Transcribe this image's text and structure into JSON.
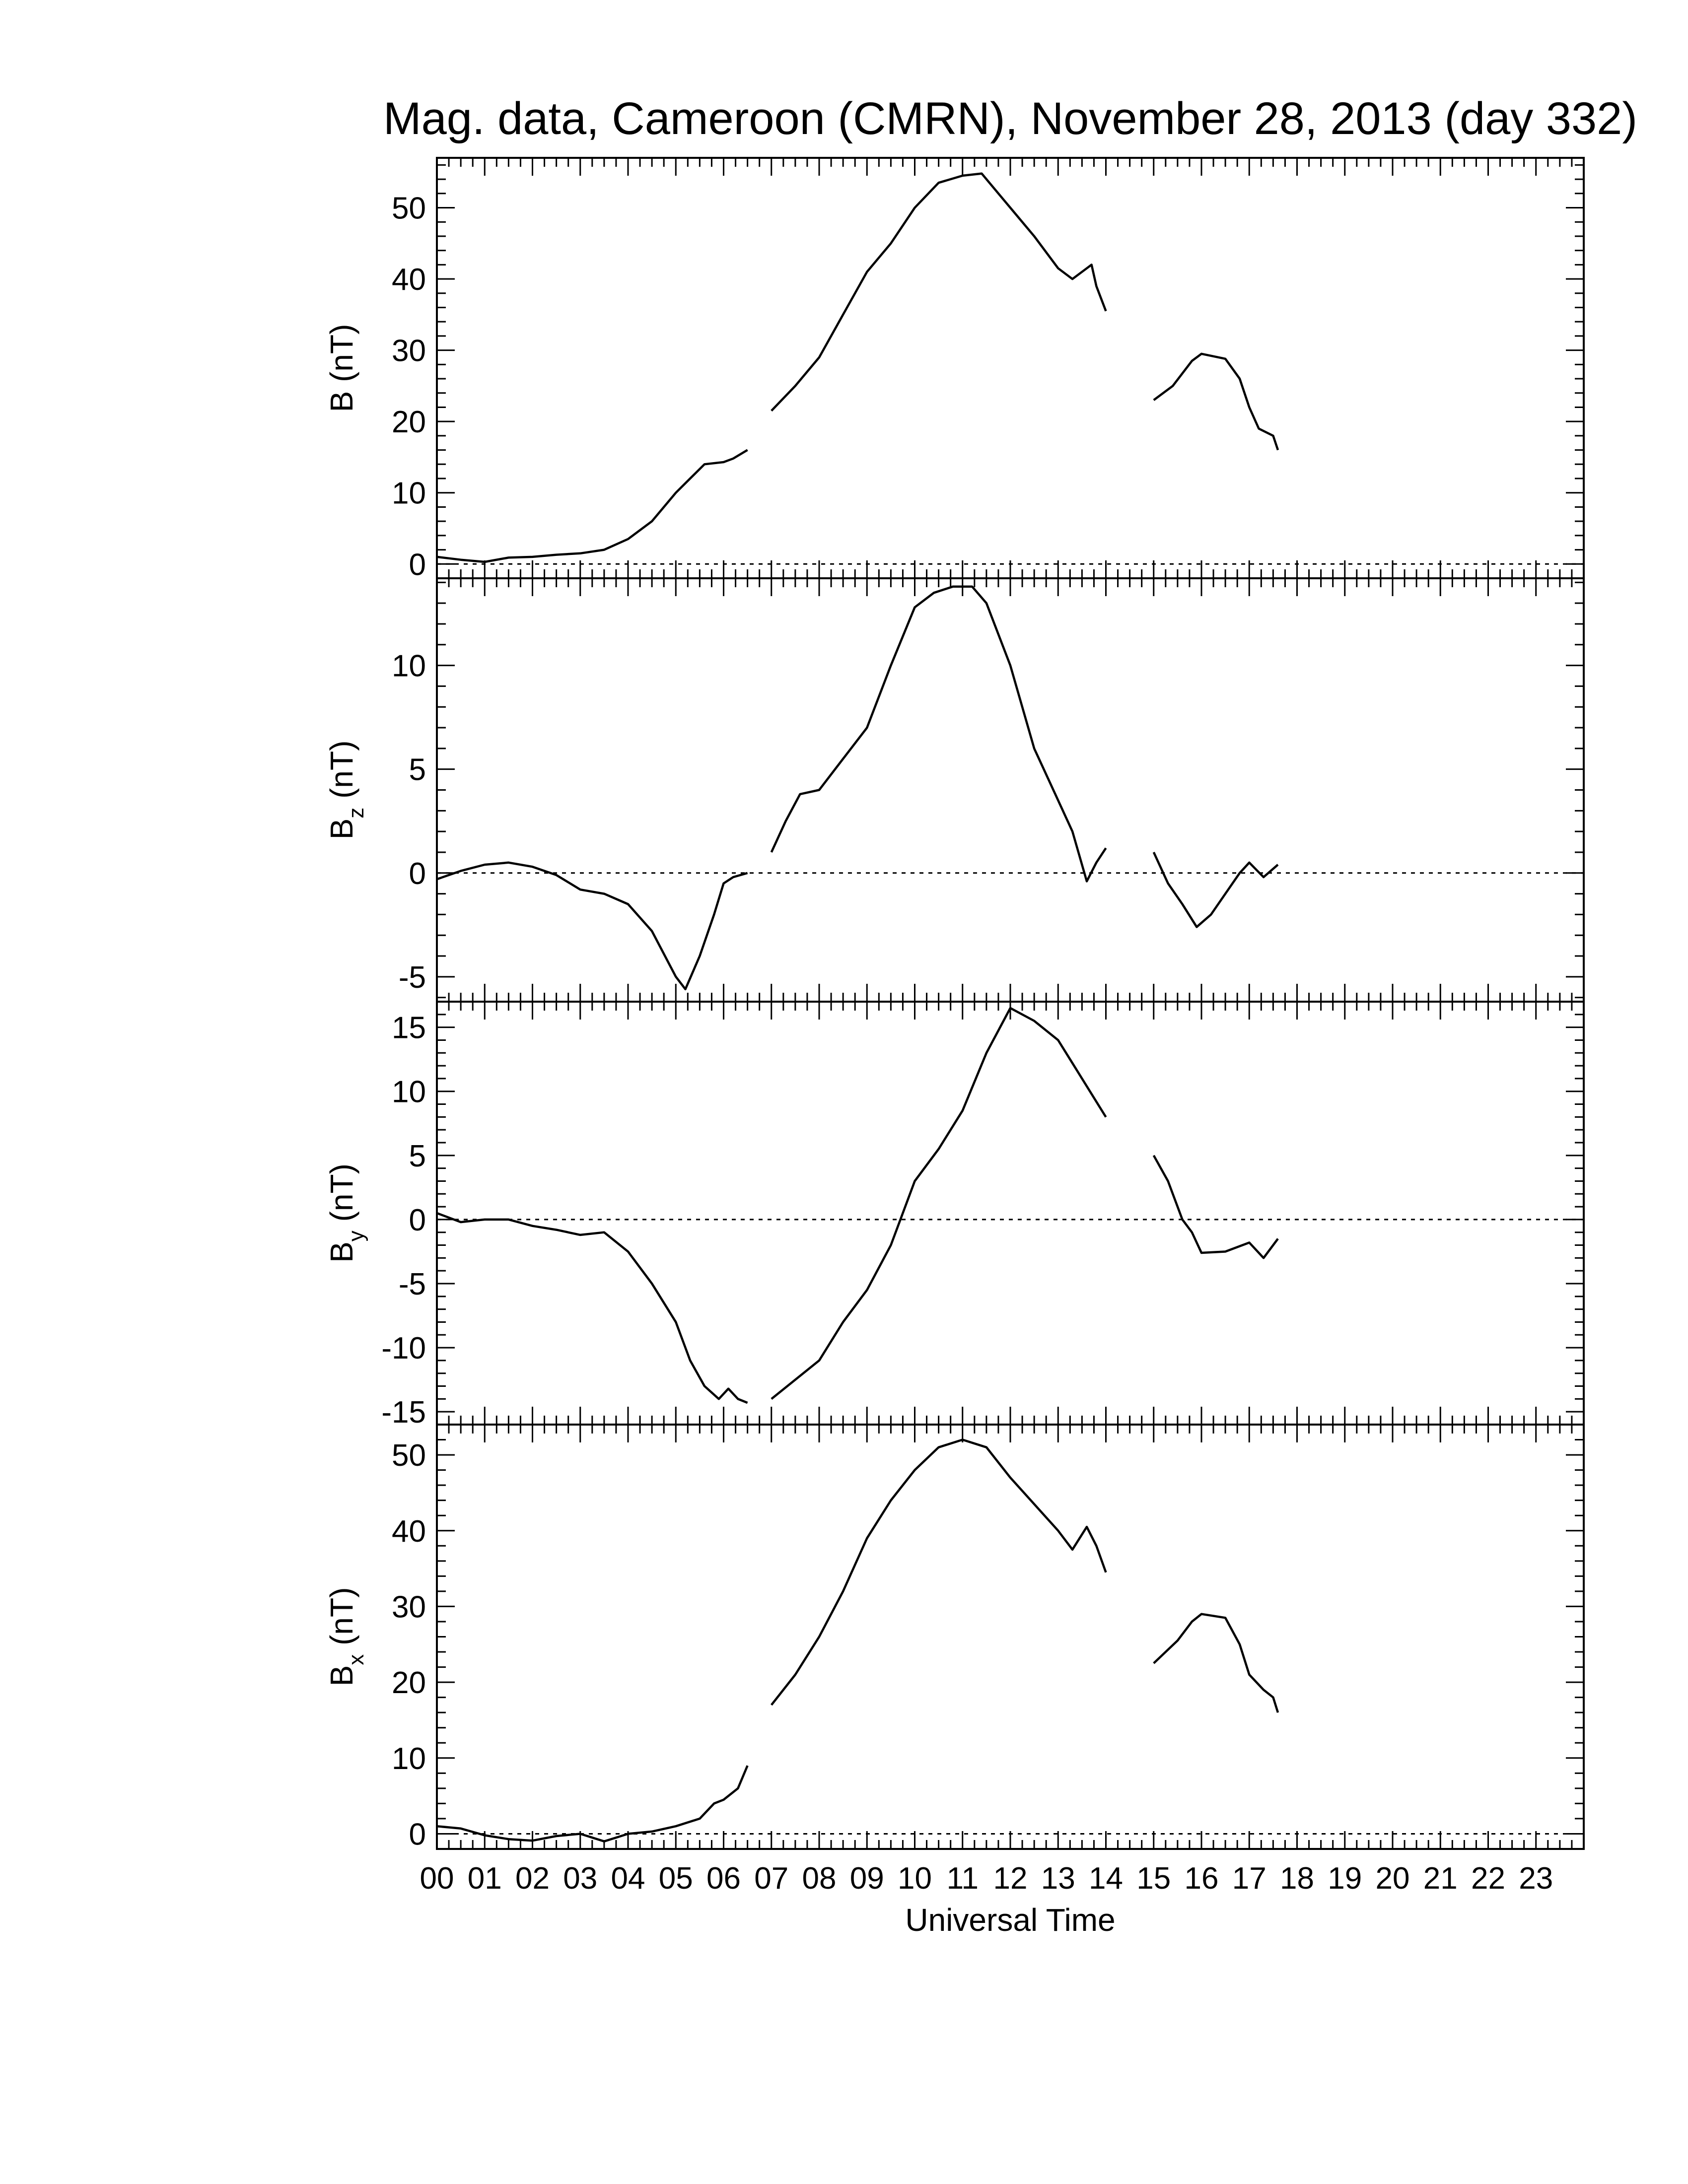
{
  "title": "Mag. data, Cameroon (CMRN), November 28, 2013 (day 332)",
  "xlabel": "Universal Time",
  "xticks": [
    "00",
    "01",
    "02",
    "03",
    "04",
    "05",
    "06",
    "07",
    "08",
    "09",
    "10",
    "11",
    "12",
    "13",
    "14",
    "15",
    "16",
    "17",
    "18",
    "19",
    "20",
    "21",
    "22",
    "23"
  ],
  "colors": {
    "line": "#000000",
    "frame": "#000000",
    "zero_line": "#000000",
    "background": "#ffffff"
  },
  "chart_data": [
    {
      "type": "line",
      "ylabel_main": "B",
      "ylabel_sub": "",
      "ylabel_unit": "(nT)",
      "xlim": [
        0,
        24
      ],
      "ylim": [
        -2,
        57
      ],
      "yticks": [
        0,
        10,
        20,
        30,
        40,
        50
      ],
      "zero_line": true,
      "segments": [
        [
          [
            0,
            1
          ],
          [
            0.5,
            0.6
          ],
          [
            1,
            0.3
          ],
          [
            1.5,
            0.9
          ],
          [
            2,
            1
          ],
          [
            2.5,
            1.3
          ],
          [
            3,
            1.5
          ],
          [
            3.5,
            2
          ],
          [
            4,
            3.5
          ],
          [
            4.5,
            6
          ],
          [
            5,
            10
          ],
          [
            5.3,
            12
          ],
          [
            5.6,
            14
          ],
          [
            6,
            14.3
          ],
          [
            6.2,
            14.8
          ],
          [
            6.5,
            16
          ]
        ],
        [
          [
            7,
            21.5
          ],
          [
            7.5,
            25
          ],
          [
            8,
            29
          ],
          [
            8.5,
            35
          ],
          [
            9,
            41
          ],
          [
            9.5,
            45
          ],
          [
            10,
            50
          ],
          [
            10.5,
            53.5
          ],
          [
            11,
            54.5
          ],
          [
            11.4,
            54.8
          ],
          [
            12,
            50
          ],
          [
            12.5,
            46
          ],
          [
            13,
            41.5
          ],
          [
            13.3,
            40
          ],
          [
            13.6,
            41.5
          ],
          [
            13.7,
            42
          ],
          [
            13.8,
            39
          ],
          [
            14,
            35.5
          ]
        ],
        [
          [
            15,
            23
          ],
          [
            15.4,
            25
          ],
          [
            15.8,
            28.5
          ],
          [
            16,
            29.5
          ],
          [
            16.5,
            28.8
          ],
          [
            16.8,
            26
          ],
          [
            17,
            22
          ],
          [
            17.2,
            19
          ],
          [
            17.5,
            18
          ],
          [
            17.6,
            16
          ]
        ]
      ]
    },
    {
      "type": "line",
      "ylabel_main": "B",
      "ylabel_sub": "z",
      "ylabel_unit": "(nT)",
      "xlim": [
        0,
        24
      ],
      "ylim": [
        -6.2,
        14.2
      ],
      "yticks": [
        -5,
        0,
        5,
        10
      ],
      "zero_line": true,
      "segments": [
        [
          [
            0,
            -0.3
          ],
          [
            0.5,
            0.1
          ],
          [
            1,
            0.4
          ],
          [
            1.5,
            0.5
          ],
          [
            2,
            0.3
          ],
          [
            2.5,
            -0.1
          ],
          [
            3,
            -0.8
          ],
          [
            3.5,
            -1
          ],
          [
            4,
            -1.5
          ],
          [
            4.5,
            -2.8
          ],
          [
            5,
            -5
          ],
          [
            5.2,
            -5.6
          ],
          [
            5.5,
            -4
          ],
          [
            5.8,
            -2
          ],
          [
            6,
            -0.5
          ],
          [
            6.2,
            -0.2
          ],
          [
            6.5,
            0
          ]
        ],
        [
          [
            7,
            1
          ],
          [
            7.3,
            2.5
          ],
          [
            7.6,
            3.8
          ],
          [
            8,
            4
          ],
          [
            8.5,
            5.5
          ],
          [
            9,
            7
          ],
          [
            9.5,
            10
          ],
          [
            10,
            12.8
          ],
          [
            10.4,
            13.5
          ],
          [
            10.8,
            13.8
          ],
          [
            11.2,
            13.8
          ],
          [
            11.5,
            13
          ],
          [
            12,
            10
          ],
          [
            12.5,
            6
          ],
          [
            13,
            3.5
          ],
          [
            13.3,
            2
          ],
          [
            13.6,
            -0.4
          ],
          [
            13.8,
            0.5
          ],
          [
            14,
            1.2
          ]
        ],
        [
          [
            15,
            1
          ],
          [
            15.3,
            -0.5
          ],
          [
            15.6,
            -1.5
          ],
          [
            15.9,
            -2.6
          ],
          [
            16.2,
            -2
          ],
          [
            16.5,
            -1
          ],
          [
            16.8,
            0
          ],
          [
            17,
            0.5
          ],
          [
            17.3,
            -0.2
          ],
          [
            17.6,
            0.4
          ]
        ]
      ]
    },
    {
      "type": "line",
      "ylabel_main": "B",
      "ylabel_sub": "y",
      "ylabel_unit": "(nT)",
      "xlim": [
        0,
        24
      ],
      "ylim": [
        -16,
        17
      ],
      "yticks": [
        -15,
        -10,
        -5,
        0,
        5,
        10,
        15
      ],
      "zero_line": true,
      "segments": [
        [
          [
            0,
            0.5
          ],
          [
            0.5,
            -0.2
          ],
          [
            1,
            0
          ],
          [
            1.5,
            0
          ],
          [
            2,
            -0.5
          ],
          [
            2.5,
            -0.8
          ],
          [
            3,
            -1.2
          ],
          [
            3.5,
            -1
          ],
          [
            4,
            -2.5
          ],
          [
            4.5,
            -5
          ],
          [
            5,
            -8
          ],
          [
            5.3,
            -11
          ],
          [
            5.6,
            -13
          ],
          [
            5.9,
            -14
          ],
          [
            6.1,
            -13.2
          ],
          [
            6.3,
            -14
          ],
          [
            6.5,
            -14.3
          ]
        ],
        [
          [
            7,
            -14
          ],
          [
            7.5,
            -12.5
          ],
          [
            8,
            -11
          ],
          [
            8.5,
            -8
          ],
          [
            9,
            -5.5
          ],
          [
            9.5,
            -2
          ],
          [
            10,
            3
          ],
          [
            10.5,
            5.5
          ],
          [
            11,
            8.5
          ],
          [
            11.5,
            13
          ],
          [
            12,
            16.5
          ],
          [
            12.5,
            15.5
          ],
          [
            13,
            14
          ],
          [
            13.5,
            11
          ],
          [
            14,
            8
          ]
        ],
        [
          [
            15,
            5
          ],
          [
            15.3,
            3
          ],
          [
            15.6,
            0
          ],
          [
            15.8,
            -1
          ],
          [
            16,
            -2.6
          ],
          [
            16.5,
            -2.5
          ],
          [
            17,
            -1.8
          ],
          [
            17.3,
            -3
          ],
          [
            17.6,
            -1.5
          ]
        ]
      ]
    },
    {
      "type": "line",
      "ylabel_main": "B",
      "ylabel_sub": "x",
      "ylabel_unit": "(nT)",
      "xlim": [
        0,
        24
      ],
      "ylim": [
        -2,
        54
      ],
      "yticks": [
        0,
        10,
        20,
        30,
        40,
        50
      ],
      "zero_line": true,
      "segments": [
        [
          [
            0,
            1
          ],
          [
            0.5,
            0.7
          ],
          [
            1,
            -0.2
          ],
          [
            1.5,
            -0.7
          ],
          [
            2,
            -0.9
          ],
          [
            2.5,
            -0.3
          ],
          [
            3,
            0
          ],
          [
            3.5,
            -1
          ],
          [
            3.8,
            -0.4
          ],
          [
            4,
            0
          ],
          [
            4.5,
            0.3
          ],
          [
            5,
            1
          ],
          [
            5.5,
            2
          ],
          [
            5.8,
            4
          ],
          [
            6,
            4.5
          ],
          [
            6.3,
            6
          ],
          [
            6.5,
            9
          ]
        ],
        [
          [
            7,
            17
          ],
          [
            7.5,
            21
          ],
          [
            8,
            26
          ],
          [
            8.5,
            32
          ],
          [
            9,
            39
          ],
          [
            9.5,
            44
          ],
          [
            10,
            48
          ],
          [
            10.5,
            51
          ],
          [
            11,
            52
          ],
          [
            11.5,
            51
          ],
          [
            12,
            47
          ],
          [
            12.5,
            43.5
          ],
          [
            13,
            40
          ],
          [
            13.3,
            37.5
          ],
          [
            13.6,
            40.5
          ],
          [
            13.8,
            38
          ],
          [
            14,
            34.5
          ]
        ],
        [
          [
            15,
            22.5
          ],
          [
            15.5,
            25.5
          ],
          [
            15.8,
            28
          ],
          [
            16,
            29
          ],
          [
            16.5,
            28.5
          ],
          [
            16.8,
            25
          ],
          [
            17,
            21
          ],
          [
            17.3,
            19
          ],
          [
            17.5,
            18
          ],
          [
            17.6,
            16
          ]
        ]
      ]
    }
  ]
}
